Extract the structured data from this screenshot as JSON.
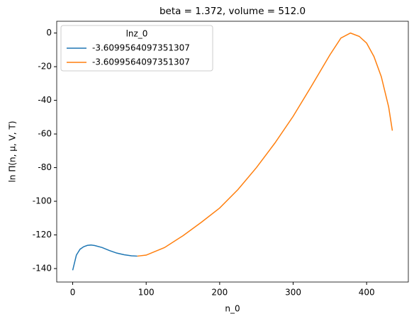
{
  "chart_data": {
    "type": "line",
    "title": "beta = 1.372, volume = 512.0",
    "x_label": "n_0",
    "y_label": "ln Π(n, μ, V, T)",
    "legend_title": "lnz_0",
    "legend_position": "upper left",
    "xlim": [
      -21.75,
      456.75
    ],
    "xticks": [
      0,
      100,
      200,
      300,
      400
    ],
    "ylim": [
      -148,
      7
    ],
    "yticks": [
      0,
      -20,
      -40,
      -60,
      -80,
      -100,
      -120,
      -140
    ],
    "series": [
      {
        "name": "-3.6099564097351307",
        "color": "#1f77b4",
        "x": [
          0,
          5,
          10,
          15,
          20,
          25,
          30,
          40,
          50,
          60,
          70,
          80,
          88
        ],
        "values": [
          -141,
          -132,
          -128.5,
          -127,
          -126.2,
          -126,
          -126.3,
          -127.5,
          -129.3,
          -130.8,
          -131.8,
          -132.4,
          -132.6
        ]
      },
      {
        "name": "-3.6099564097351307",
        "color": "#ff7f0e",
        "x": [
          88,
          100,
          125,
          150,
          175,
          200,
          225,
          250,
          275,
          300,
          325,
          350,
          365,
          378,
          390,
          400,
          410,
          420,
          430,
          435
        ],
        "values": [
          -132.6,
          -132,
          -127.5,
          -120.5,
          -112.5,
          -104,
          -93,
          -80,
          -65.5,
          -49.5,
          -31.5,
          -13,
          -3,
          0,
          -2,
          -6,
          -14,
          -26,
          -44,
          -58
        ]
      }
    ]
  }
}
